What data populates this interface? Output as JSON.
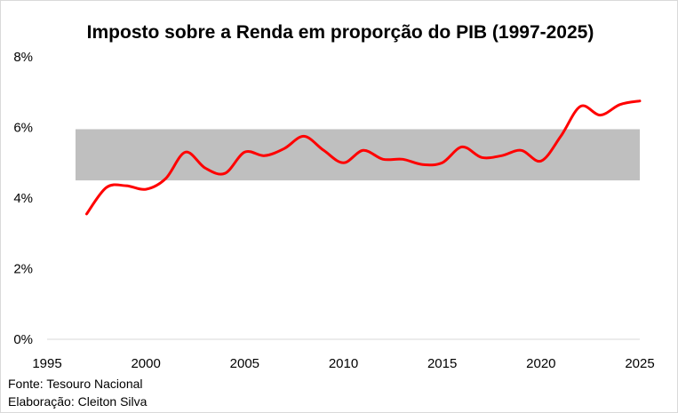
{
  "chart_data": {
    "type": "line",
    "title": "Imposto sobre a Renda em proporção do PIB (1997-2025)",
    "xlabel": "",
    "ylabel": "",
    "xlim": [
      1995,
      2025
    ],
    "ylim": [
      0,
      8
    ],
    "x_ticks": [
      1995,
      2000,
      2005,
      2010,
      2015,
      2020,
      2025
    ],
    "y_ticks": [
      0,
      2,
      4,
      6,
      8
    ],
    "y_tick_labels": [
      "0%",
      "2%",
      "4%",
      "6%",
      "8%"
    ],
    "grid": false,
    "band": {
      "from": 4.5,
      "to": 5.95,
      "color": "#bfbfbf"
    },
    "series": [
      {
        "color": "#ff0000",
        "x": [
          1997,
          1998,
          1999,
          2000,
          2001,
          2002,
          2003,
          2004,
          2005,
          2006,
          2007,
          2008,
          2009,
          2010,
          2011,
          2012,
          2013,
          2014,
          2015,
          2016,
          2017,
          2018,
          2019,
          2020,
          2021,
          2022,
          2023,
          2024,
          2025
        ],
        "y": [
          3.55,
          4.3,
          4.35,
          4.25,
          4.55,
          5.3,
          4.85,
          4.7,
          5.3,
          5.2,
          5.4,
          5.75,
          5.35,
          5.0,
          5.35,
          5.1,
          5.1,
          4.95,
          5.0,
          5.45,
          5.15,
          5.2,
          5.35,
          5.05,
          5.75,
          6.6,
          6.35,
          6.65,
          6.75
        ]
      }
    ],
    "notes": [
      "Fonte: Tesouro Nacional",
      "Elaboração: Cleiton Silva"
    ]
  }
}
